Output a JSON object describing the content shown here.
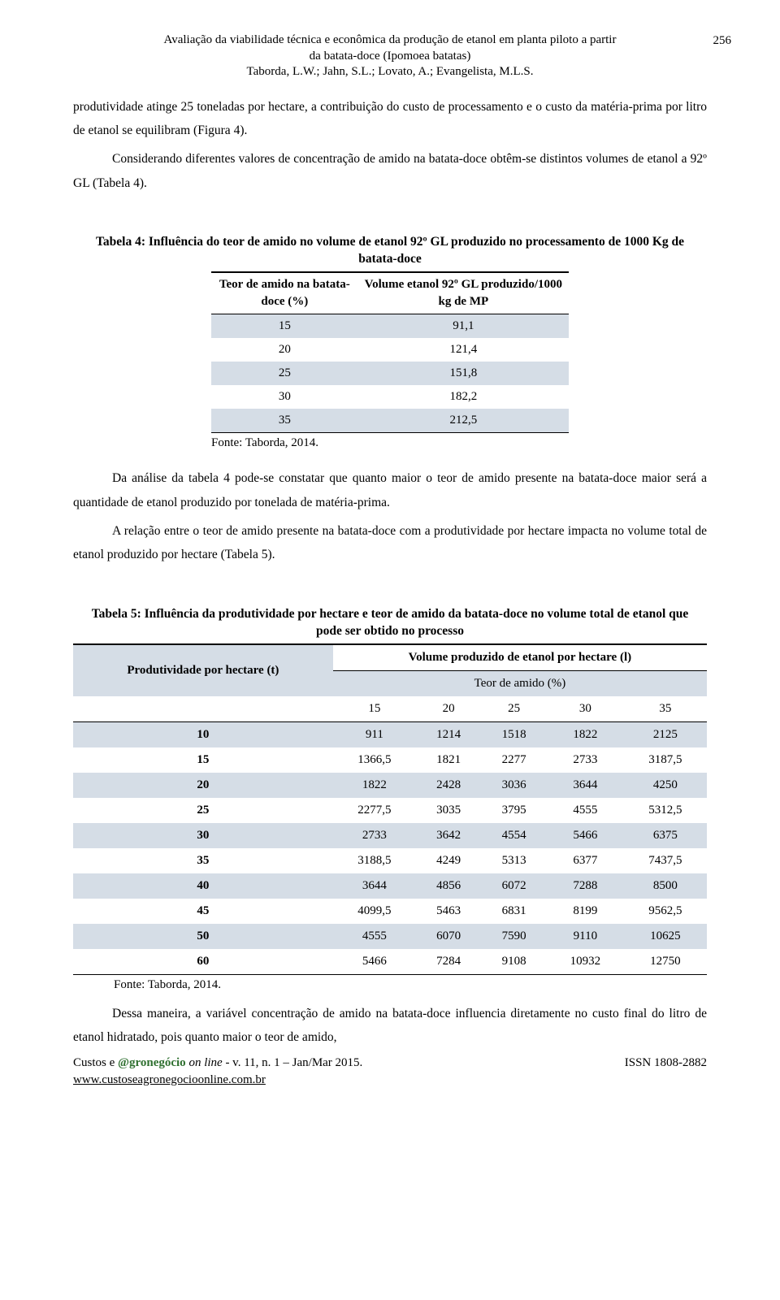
{
  "page_number": "256",
  "header": {
    "line1": "Avaliação da viabilidade técnica e econômica da produção de etanol em planta piloto a partir",
    "line2": "da batata-doce (Ipomoea batatas)",
    "line3": "Taborda, L.W.; Jahn, S.L.; Lovato, A.; Evangelista, M.L.S."
  },
  "para1": "produtividade atinge 25 toneladas por hectare, a contribuição do custo de processamento e o custo da matéria-prima por litro de etanol se equilibram (Figura 4).",
  "para2": "Considerando diferentes valores de concentração de amido na batata-doce obtêm-se distintos volumes de etanol a 92º GL (Tabela 4).",
  "table4": {
    "title": "Tabela 4: Influência do teor de amido no volume de etanol 92º GL produzido no processamento de 1000 Kg de batata-doce",
    "col1": "Teor de amido na batata-doce (%)",
    "col2": "Volume etanol 92º GL produzido/1000 kg de MP",
    "rows": [
      {
        "teor": "15",
        "vol": "91,1"
      },
      {
        "teor": "20",
        "vol": "121,4"
      },
      {
        "teor": "25",
        "vol": "151,8"
      },
      {
        "teor": "30",
        "vol": "182,2"
      },
      {
        "teor": "35",
        "vol": "212,5"
      }
    ],
    "shade_color": "#d5dde6",
    "fonte": "Fonte: Taborda, 2014."
  },
  "para3": "Da análise da tabela 4 pode-se constatar que quanto maior o teor de amido presente na batata-doce maior será a quantidade de etanol produzido por tonelada de matéria-prima.",
  "para4": "A relação entre o teor de amido presente na batata-doce com a produtividade por hectare impacta no volume total de etanol produzido por hectare (Tabela 5).",
  "table5": {
    "title": "Tabela 5: Influência da produtividade por hectare e teor de amido da batata-doce no volume total de etanol que pode ser obtido no processo",
    "span_head": "Volume produzido de etanol por hectare (l)",
    "row_head": "Produtividade por hectare (t)",
    "sub_head": "Teor de amido (%)",
    "pct_cols": [
      "15",
      "20",
      "25",
      "30",
      "35"
    ],
    "rows": [
      {
        "prod": "10",
        "v": [
          "911",
          "1214",
          "1518",
          "1822",
          "2125"
        ]
      },
      {
        "prod": "15",
        "v": [
          "1366,5",
          "1821",
          "2277",
          "2733",
          "3187,5"
        ]
      },
      {
        "prod": "20",
        "v": [
          "1822",
          "2428",
          "3036",
          "3644",
          "4250"
        ]
      },
      {
        "prod": "25",
        "v": [
          "2277,5",
          "3035",
          "3795",
          "4555",
          "5312,5"
        ]
      },
      {
        "prod": "30",
        "v": [
          "2733",
          "3642",
          "4554",
          "5466",
          "6375"
        ]
      },
      {
        "prod": "35",
        "v": [
          "3188,5",
          "4249",
          "5313",
          "6377",
          "7437,5"
        ]
      },
      {
        "prod": "40",
        "v": [
          "3644",
          "4856",
          "6072",
          "7288",
          "8500"
        ]
      },
      {
        "prod": "45",
        "v": [
          "4099,5",
          "5463",
          "6831",
          "8199",
          "9562,5"
        ]
      },
      {
        "prod": "50",
        "v": [
          "4555",
          "6070",
          "7590",
          "9110",
          "10625"
        ]
      },
      {
        "prod": "60",
        "v": [
          "5466",
          "7284",
          "9108",
          "10932",
          "12750"
        ]
      }
    ],
    "fonte": "Fonte: Taborda, 2014."
  },
  "para5": "Dessa maneira, a variável concentração de amido na batata-doce influencia diretamente no custo final do litro de etanol hidratado, pois quanto maior o teor de amido,",
  "footer": {
    "left_prefix": "Custos e ",
    "left_green": "@gronegócio",
    "left_online": " on line",
    "left_suffix": " - v. 11, n. 1 – Jan/Mar 2015.",
    "site": "www.custoseagronegocioonline.com.br",
    "issn": "ISSN 1808-2882"
  }
}
